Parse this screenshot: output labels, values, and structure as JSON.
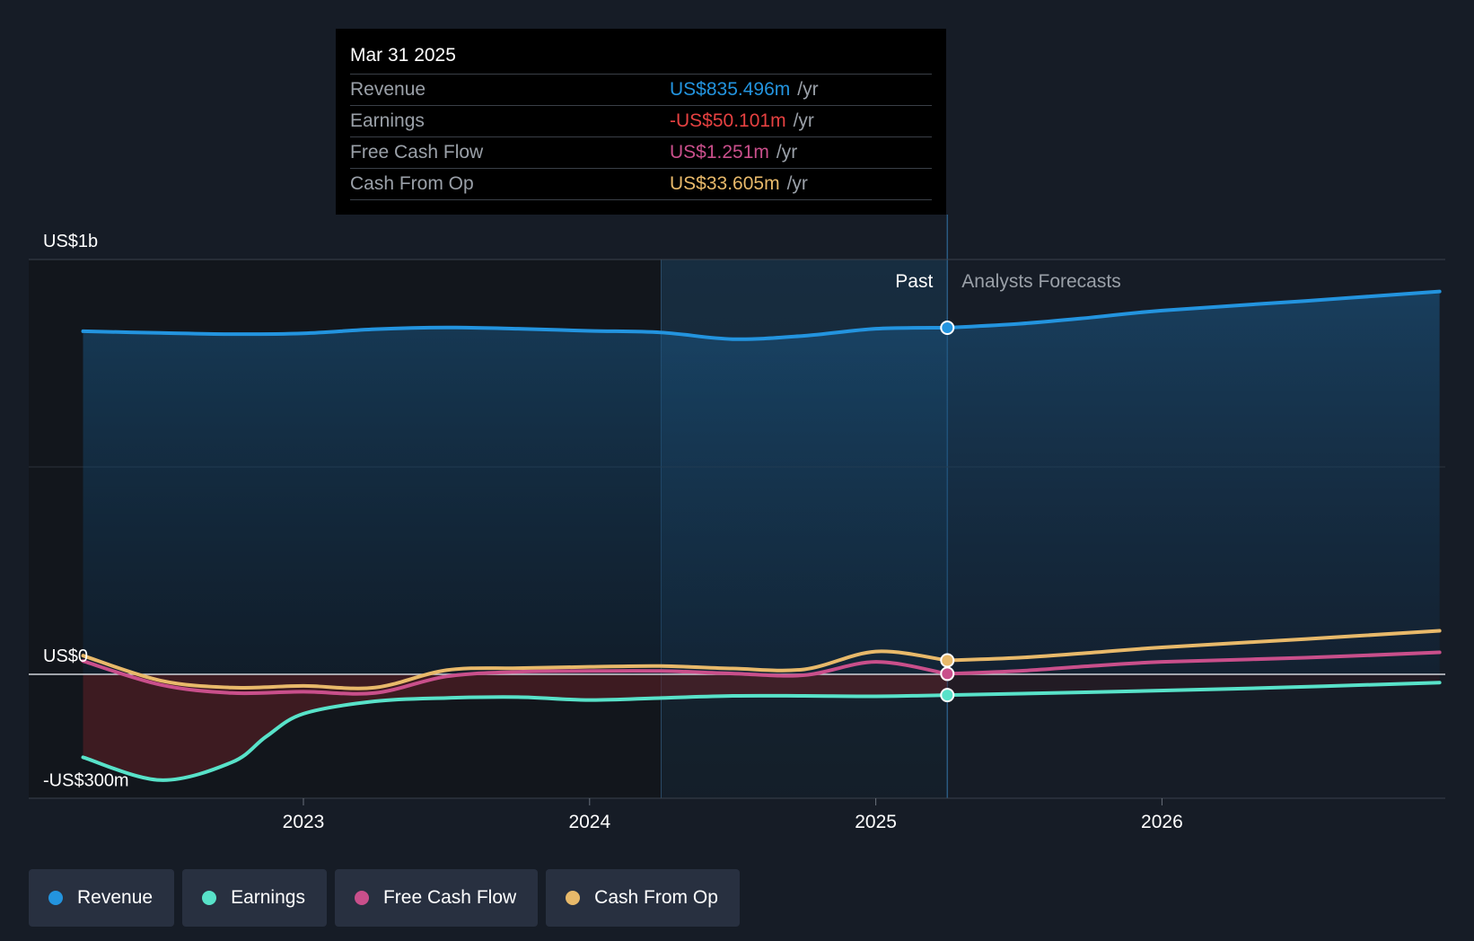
{
  "tooltip": {
    "date": "Mar 31 2025",
    "rows": [
      {
        "label": "Revenue",
        "value": "US$835.496m",
        "unit": "/yr",
        "color": "#2394df"
      },
      {
        "label": "Earnings",
        "value": "-US$50.101m",
        "unit": "/yr",
        "color": "#e64141"
      },
      {
        "label": "Free Cash Flow",
        "value": "US$1.251m",
        "unit": "/yr",
        "color": "#c94f8b"
      },
      {
        "label": "Cash From Op",
        "value": "US$33.605m",
        "unit": "/yr",
        "color": "#e8b96a"
      }
    ]
  },
  "labels": {
    "past": "Past",
    "forecast": "Analysts Forecasts"
  },
  "legend": [
    {
      "label": "Revenue",
      "color": "#2394df"
    },
    {
      "label": "Earnings",
      "color": "#58e2c9"
    },
    {
      "label": "Free Cash Flow",
      "color": "#c94f8b"
    },
    {
      "label": "Cash From Op",
      "color": "#e8b96a"
    }
  ],
  "chart_data": {
    "type": "line",
    "title": "",
    "unit": "US$m",
    "ylim": [
      -300,
      1000
    ],
    "y_tick_labels": [
      {
        "value": 1000,
        "label": "US$1b"
      },
      {
        "value": 0,
        "label": "US$0"
      },
      {
        "value": -300,
        "label": "-US$300m"
      }
    ],
    "x_ticks": [
      {
        "value": 2023.0,
        "label": "2023"
      },
      {
        "value": 2024.0,
        "label": "2024"
      },
      {
        "value": 2025.0,
        "label": "2025"
      },
      {
        "value": 2026.0,
        "label": "2026"
      }
    ],
    "xlim": [
      2022.0,
      2026.97
    ],
    "highlight_range": [
      2024.25,
      2025.25
    ],
    "past_end": 2025.25,
    "series": [
      {
        "name": "Revenue",
        "color": "#2394df",
        "past": [
          [
            2022.23,
            827
          ],
          [
            2022.5,
            823
          ],
          [
            2022.75,
            820
          ],
          [
            2023.0,
            822
          ],
          [
            2023.25,
            832
          ],
          [
            2023.5,
            836
          ],
          [
            2023.75,
            833
          ],
          [
            2024.0,
            828
          ],
          [
            2024.25,
            824
          ],
          [
            2024.5,
            808
          ],
          [
            2024.75,
            816
          ],
          [
            2025.0,
            833
          ],
          [
            2025.25,
            835.5
          ]
        ],
        "forecast": [
          [
            2025.25,
            835.5
          ],
          [
            2025.5,
            845
          ],
          [
            2025.75,
            860
          ],
          [
            2026.0,
            877
          ],
          [
            2026.5,
            900
          ],
          [
            2026.97,
            923
          ]
        ]
      },
      {
        "name": "Earnings",
        "color": "#58e2c9",
        "past": [
          [
            2022.23,
            -200
          ],
          [
            2022.5,
            -255
          ],
          [
            2022.75,
            -212
          ],
          [
            2022.87,
            -150
          ],
          [
            2023.0,
            -95
          ],
          [
            2023.25,
            -65
          ],
          [
            2023.5,
            -57
          ],
          [
            2023.75,
            -55
          ],
          [
            2024.0,
            -62
          ],
          [
            2024.25,
            -57
          ],
          [
            2024.5,
            -52
          ],
          [
            2024.75,
            -52
          ],
          [
            2025.0,
            -53
          ],
          [
            2025.25,
            -50.1
          ]
        ],
        "forecast": [
          [
            2025.25,
            -50.1
          ],
          [
            2025.75,
            -43
          ],
          [
            2026.25,
            -35
          ],
          [
            2026.97,
            -20
          ]
        ]
      },
      {
        "name": "Free Cash Flow",
        "color": "#c94f8b",
        "past": [
          [
            2022.23,
            32
          ],
          [
            2022.5,
            -25
          ],
          [
            2022.75,
            -45
          ],
          [
            2023.0,
            -42
          ],
          [
            2023.25,
            -45
          ],
          [
            2023.5,
            -5
          ],
          [
            2023.75,
            6
          ],
          [
            2024.0,
            8
          ],
          [
            2024.25,
            8
          ],
          [
            2024.5,
            2
          ],
          [
            2024.75,
            -2
          ],
          [
            2025.0,
            30
          ],
          [
            2025.25,
            1.25
          ]
        ],
        "forecast": [
          [
            2025.25,
            1.25
          ],
          [
            2025.5,
            8
          ],
          [
            2025.75,
            20
          ],
          [
            2026.0,
            30
          ],
          [
            2026.5,
            40
          ],
          [
            2026.97,
            53
          ]
        ]
      },
      {
        "name": "Cash From Op",
        "color": "#e8b96a",
        "past": [
          [
            2022.23,
            45
          ],
          [
            2022.5,
            -15
          ],
          [
            2022.75,
            -32
          ],
          [
            2023.0,
            -28
          ],
          [
            2023.25,
            -32
          ],
          [
            2023.5,
            10
          ],
          [
            2023.75,
            15
          ],
          [
            2024.0,
            18
          ],
          [
            2024.25,
            20
          ],
          [
            2024.5,
            14
          ],
          [
            2024.75,
            12
          ],
          [
            2025.0,
            55
          ],
          [
            2025.25,
            33.6
          ]
        ],
        "forecast": [
          [
            2025.25,
            33.6
          ],
          [
            2025.5,
            40
          ],
          [
            2025.75,
            52
          ],
          [
            2026.0,
            65
          ],
          [
            2026.5,
            85
          ],
          [
            2026.97,
            105
          ]
        ]
      }
    ]
  }
}
